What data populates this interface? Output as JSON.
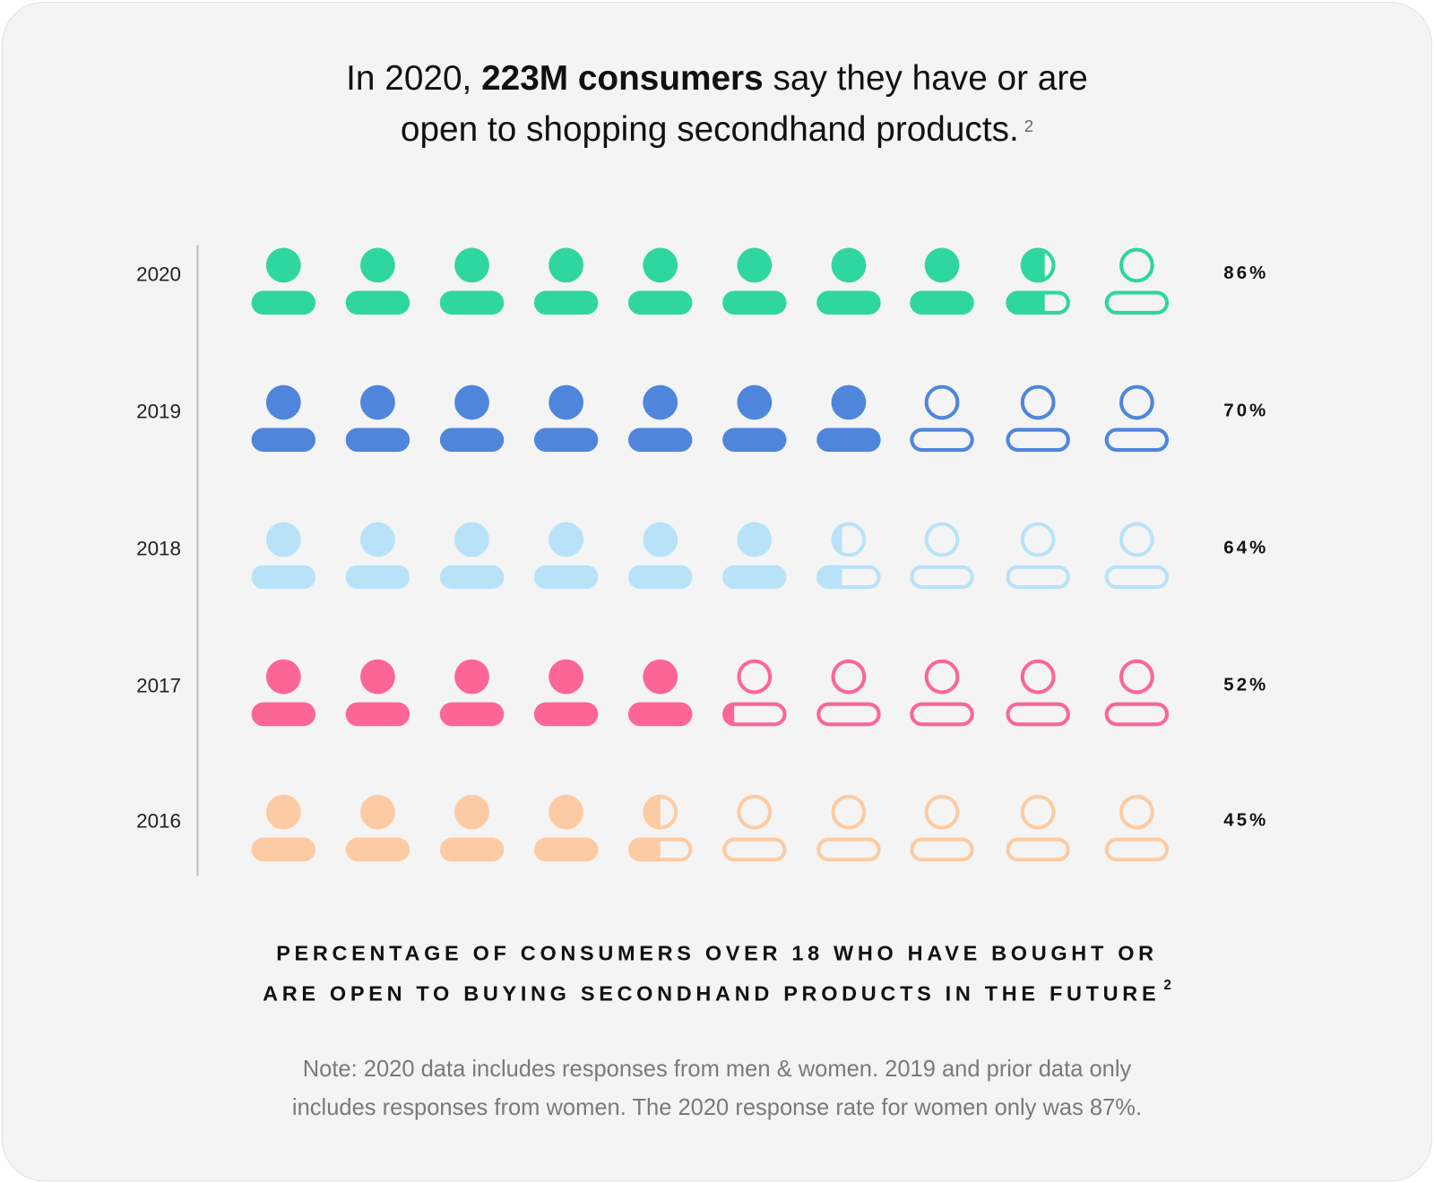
{
  "headline": {
    "prefix": "In 2020, ",
    "bold": "223M consumers",
    "suffix_line1": " say they have or are",
    "line2": "open to shopping secondhand products.",
    "footnote": "2"
  },
  "chart_data": {
    "type": "pictogram",
    "icons_per_row": 10,
    "icon": "person-icon",
    "categories": [
      "2020",
      "2019",
      "2018",
      "2017",
      "2016"
    ],
    "values": [
      86,
      70,
      64,
      52,
      45
    ],
    "value_labels": [
      "86%",
      "70%",
      "64%",
      "52%",
      "45%"
    ],
    "colors": [
      "#2fd69f",
      "#4f86dc",
      "#b8e2f8",
      "#fb6697",
      "#fccba3"
    ],
    "caption_line1": "PERCENTAGE OF CONSUMERS OVER 18 WHO HAVE BOUGHT OR",
    "caption_line2": "ARE OPEN TO BUYING SECONDHAND PRODUCTS IN THE FUTURE",
    "caption_footnote": "2"
  },
  "note": {
    "line1": "Note: 2020 data includes responses from men & women. 2019 and prior data only",
    "line2": "includes responses from women. The 2020 response rate for women only was 87%."
  }
}
